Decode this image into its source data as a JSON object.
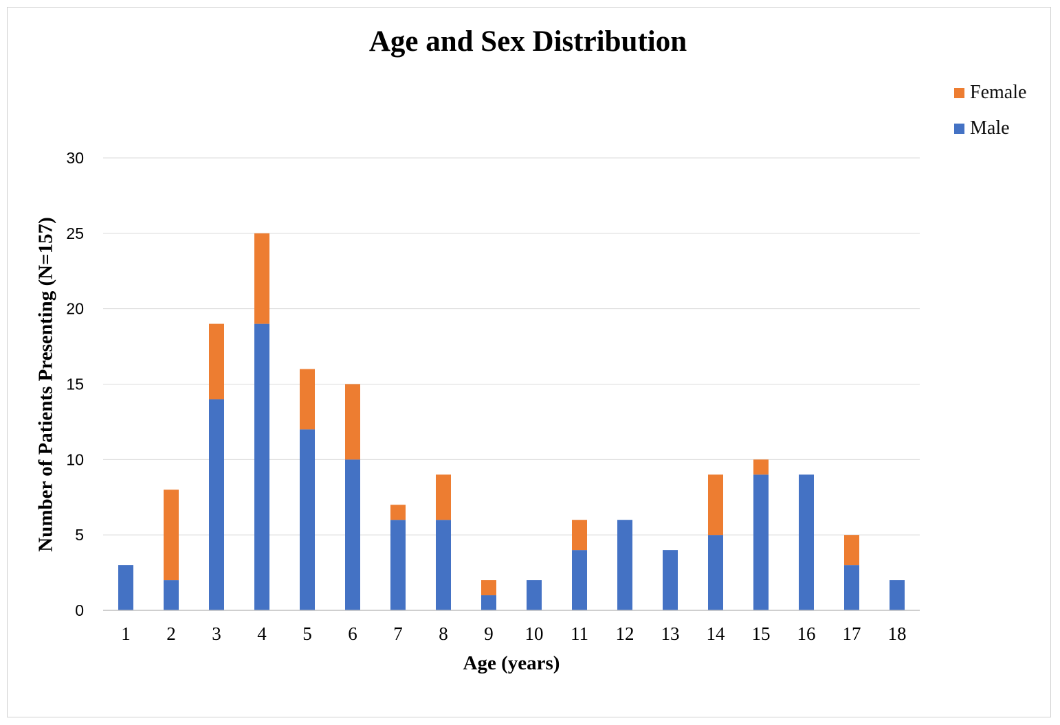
{
  "chart_data": {
    "type": "bar",
    "stacked": true,
    "title": "Age and Sex Distribution",
    "xlabel": "Age (years)",
    "ylabel": "Number of Patients Presenting (N=157)",
    "categories": [
      "1",
      "2",
      "3",
      "4",
      "5",
      "6",
      "7",
      "8",
      "9",
      "10",
      "11",
      "12",
      "13",
      "14",
      "15",
      "16",
      "17",
      "18"
    ],
    "series": [
      {
        "name": "Male",
        "color": "#4472C4",
        "values": [
          3,
          2,
          14,
          19,
          12,
          10,
          6,
          6,
          1,
          2,
          4,
          6,
          4,
          5,
          9,
          9,
          3,
          2
        ]
      },
      {
        "name": "Female",
        "color": "#ED7D31",
        "values": [
          0,
          6,
          5,
          6,
          4,
          5,
          1,
          3,
          1,
          0,
          2,
          0,
          0,
          4,
          1,
          0,
          2,
          0
        ]
      }
    ],
    "ylim": [
      0,
      30
    ],
    "yticks": [
      "0",
      "5",
      "10",
      "15",
      "20",
      "25",
      "30"
    ],
    "grid": true,
    "legend_position": "top-right"
  }
}
